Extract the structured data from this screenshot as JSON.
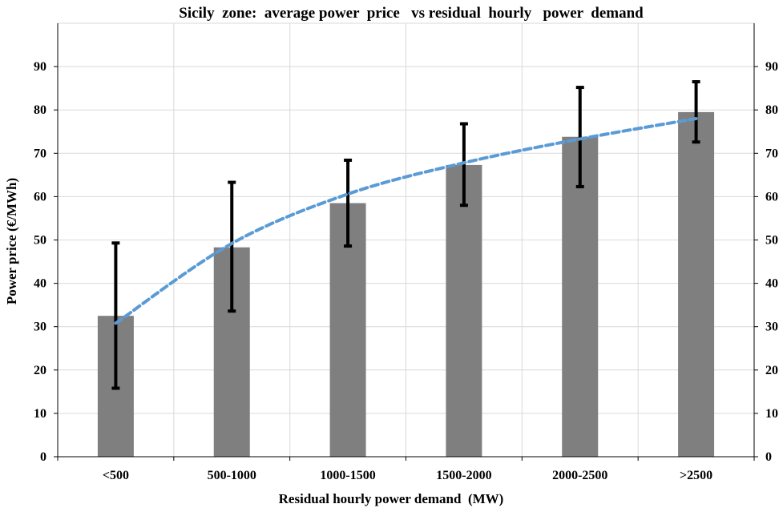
{
  "chart_data": {
    "type": "bar",
    "title": "Sicily  zone:  average power  price   vs residual  hourly   power  demand",
    "xlabel": "Residual hourly power demand  (MW)",
    "ylabel": "Power price (€/MWh)",
    "ylim": [
      0,
      100
    ],
    "yticks": [
      "0",
      "10",
      "20",
      "30",
      "40",
      "50",
      "60",
      "70",
      "80",
      "90"
    ],
    "grid": true,
    "categories": [
      "<500",
      "500-1000",
      "1000-1500",
      "1500-2000",
      "2000-2500",
      ">2500"
    ],
    "values": [
      32.5,
      48.3,
      58.5,
      67.3,
      73.8,
      79.5
    ],
    "error_low": [
      15.8,
      33.6,
      48.6,
      58.0,
      62.3,
      72.6
    ],
    "error_high": [
      49.3,
      63.3,
      68.4,
      76.8,
      85.2,
      86.5
    ],
    "trend": [
      30.8,
      49.2,
      60.6,
      67.8,
      73.3,
      78.0
    ],
    "colors": {
      "bar": "#7f7f7f",
      "error": "#000000",
      "trend": "#5b9bd5",
      "grid": "#d9d9d9",
      "axis": "#000000"
    }
  }
}
